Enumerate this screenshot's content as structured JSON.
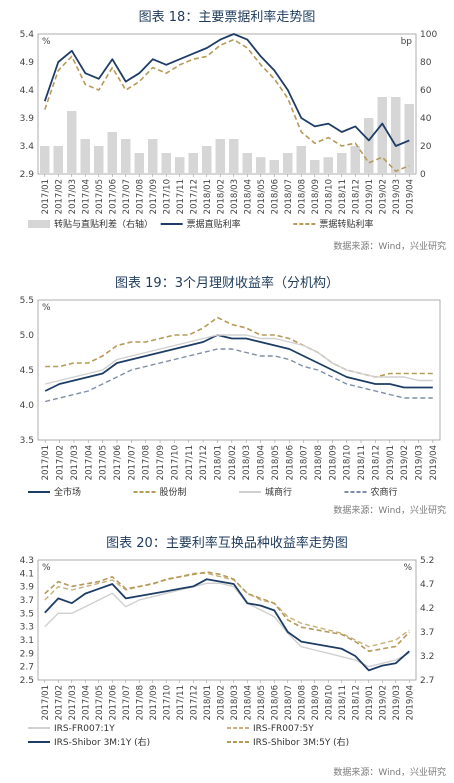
{
  "colors": {
    "navy": "#1e3d66",
    "gold": "#b59a58",
    "gold2": "#c7b07c",
    "light": "#d0d0d0",
    "slate": "#7f8fa6",
    "bar": "#d6d6d6"
  },
  "chart_data": [
    {
      "type": "line",
      "title": "图表 18：主要票据利率走势图",
      "y_unit_left": "%",
      "y_unit_right": "bp",
      "ylim": [
        2.9,
        5.4
      ],
      "y_ticks": [
        "5.4",
        "4.9",
        "4.4",
        "3.9",
        "3.4",
        "2.9"
      ],
      "y2lim": [
        0,
        100
      ],
      "y2_ticks": [
        "100",
        "80",
        "60",
        "40",
        "20",
        "0"
      ],
      "categories": [
        "2017/01",
        "2017/02",
        "2017/03",
        "2017/04",
        "2017/05",
        "2017/06",
        "2017/07",
        "2017/08",
        "2017/09",
        "2017/10",
        "2017/11",
        "2017/12",
        "2018/01",
        "2018/02",
        "2018/03",
        "2018/04",
        "2018/05",
        "2018/06",
        "2018/07",
        "2018/08",
        "2018/09",
        "2018/10",
        "2018/11",
        "2018/12",
        "2019/01",
        "2019/02",
        "2019/03",
        "2019/04"
      ],
      "series": [
        {
          "name": "转贴与直贴利差（右轴）",
          "kind": "bar",
          "axis": "right",
          "values": [
            20,
            20,
            45,
            25,
            20,
            30,
            25,
            15,
            25,
            15,
            12,
            15,
            20,
            25,
            25,
            15,
            12,
            10,
            15,
            20,
            10,
            12,
            15,
            20,
            40,
            55,
            55,
            50
          ]
        },
        {
          "name": "票据直贴利率",
          "kind": "line",
          "style": "solid",
          "values": [
            4.2,
            4.9,
            5.1,
            4.7,
            4.6,
            4.95,
            4.55,
            4.7,
            4.95,
            4.85,
            4.95,
            5.05,
            5.15,
            5.3,
            5.4,
            5.3,
            5.0,
            4.75,
            4.4,
            3.9,
            3.75,
            3.8,
            3.65,
            3.75,
            3.5,
            3.8,
            3.4,
            3.5
          ]
        },
        {
          "name": "票据转贴利率",
          "kind": "line",
          "style": "dashed",
          "values": [
            4.05,
            4.75,
            5.0,
            4.5,
            4.4,
            4.8,
            4.4,
            4.55,
            4.8,
            4.7,
            4.85,
            4.95,
            5.0,
            5.2,
            5.3,
            5.15,
            4.85,
            4.6,
            4.25,
            3.65,
            3.45,
            3.55,
            3.4,
            3.45,
            3.1,
            3.2,
            2.95,
            3.05
          ]
        }
      ],
      "source": "数据来源：Wind，兴业研究"
    },
    {
      "type": "line",
      "title": "图表 19：3个月理财收益率（分机构）",
      "y_unit_left": "%",
      "ylim": [
        3.5,
        5.5
      ],
      "y_ticks": [
        "5.5",
        "5.0",
        "4.5",
        "4.0",
        "3.5"
      ],
      "categories": [
        "2017/01",
        "2017/02",
        "2017/03",
        "2017/04",
        "2017/05",
        "2017/06",
        "2017/07",
        "2017/08",
        "2017/09",
        "2017/10",
        "2017/11",
        "2017/12",
        "2018/01",
        "2018/02",
        "2018/03",
        "2018/04",
        "2018/05",
        "2018/06",
        "2018/07",
        "2018/08",
        "2018/09",
        "2018/10",
        "2018/11",
        "2018/12",
        "2019/01",
        "2019/02",
        "2019/03",
        "2019/04"
      ],
      "series": [
        {
          "name": "全市场",
          "style": "solid",
          "values": [
            4.2,
            4.3,
            4.35,
            4.4,
            4.45,
            4.6,
            4.65,
            4.7,
            4.75,
            4.8,
            4.85,
            4.9,
            5.0,
            4.95,
            4.95,
            4.9,
            4.85,
            4.8,
            4.7,
            4.6,
            4.5,
            4.4,
            4.35,
            4.3,
            4.3,
            4.25,
            4.25,
            4.25
          ]
        },
        {
          "name": "股份制",
          "style": "dashed",
          "values": [
            4.55,
            4.55,
            4.6,
            4.6,
            4.7,
            4.85,
            4.9,
            4.9,
            4.95,
            5.0,
            5.0,
            5.1,
            5.25,
            5.15,
            5.1,
            5.0,
            5.0,
            4.95,
            4.85,
            4.75,
            4.6,
            4.5,
            4.45,
            4.4,
            4.45,
            4.45,
            4.45,
            4.45
          ]
        },
        {
          "name": "城商行",
          "style": "solid-light",
          "values": [
            4.3,
            4.35,
            4.4,
            4.45,
            4.5,
            4.65,
            4.7,
            4.75,
            4.8,
            4.85,
            4.9,
            4.95,
            5.0,
            5.0,
            5.0,
            4.95,
            4.95,
            4.9,
            4.85,
            4.75,
            4.6,
            4.5,
            4.45,
            4.4,
            4.4,
            4.4,
            4.35,
            4.35
          ]
        },
        {
          "name": "农商行",
          "style": "dashed-slate",
          "values": [
            4.05,
            4.1,
            4.15,
            4.2,
            4.3,
            4.4,
            4.5,
            4.55,
            4.6,
            4.65,
            4.7,
            4.75,
            4.8,
            4.8,
            4.75,
            4.7,
            4.7,
            4.65,
            4.55,
            4.5,
            4.4,
            4.3,
            4.25,
            4.2,
            4.15,
            4.1,
            4.1,
            4.1
          ]
        }
      ],
      "source": "数据来源：Wind，兴业研究"
    },
    {
      "type": "line",
      "title": "图表 20：主要利率互换品种收益率走势图",
      "y_unit_left": "%",
      "y_unit_right": "%",
      "ylim": [
        2.5,
        4.3
      ],
      "y_ticks": [
        "4.3",
        "4.1",
        "3.9",
        "3.7",
        "3.5",
        "3.3",
        "3.1",
        "2.9",
        "2.7",
        "2.5"
      ],
      "y2lim": [
        2.7,
        5.2
      ],
      "y2_ticks": [
        "5.2",
        "4.7",
        "4.2",
        "3.7",
        "3.2",
        "2.7"
      ],
      "categories": [
        "2017/01",
        "2017/02",
        "2017/03",
        "2017/04",
        "2017/05",
        "2017/06",
        "2017/07",
        "2017/08",
        "2017/09",
        "2017/10",
        "2017/11",
        "2017/12",
        "2018/01",
        "2018/02",
        "2018/03",
        "2018/04",
        "2018/05",
        "2018/06",
        "2018/07",
        "2018/08",
        "2018/09",
        "2018/10",
        "2018/11",
        "2018/12",
        "2019/01",
        "2019/02",
        "2019/03",
        "2019/04"
      ],
      "series": [
        {
          "name": "IRS-FR007:1Y",
          "style": "solid-light",
          "axis": "left",
          "values": [
            3.3,
            3.5,
            3.5,
            3.6,
            3.7,
            3.8,
            3.6,
            3.7,
            3.75,
            3.8,
            3.85,
            3.9,
            3.95,
            3.95,
            3.9,
            3.65,
            3.55,
            3.45,
            3.2,
            3.0,
            2.95,
            2.9,
            2.85,
            2.8,
            2.7,
            2.75,
            2.8,
            2.9
          ]
        },
        {
          "name": "IRS-FR007:5Y",
          "style": "dashed-light",
          "axis": "left",
          "values": [
            3.7,
            3.9,
            3.85,
            3.9,
            3.95,
            4.0,
            3.85,
            3.9,
            3.95,
            4.0,
            4.05,
            4.1,
            4.1,
            4.05,
            4.0,
            3.8,
            3.7,
            3.65,
            3.45,
            3.35,
            3.3,
            3.25,
            3.2,
            3.1,
            3.0,
            3.05,
            3.1,
            3.25
          ]
        },
        {
          "name": "IRS-Shibor 3M:1Y (右)",
          "style": "solid",
          "axis": "right",
          "values": [
            4.1,
            4.4,
            4.3,
            4.5,
            4.6,
            4.7,
            4.4,
            4.45,
            4.5,
            4.55,
            4.6,
            4.65,
            4.8,
            4.75,
            4.7,
            4.3,
            4.25,
            4.15,
            3.7,
            3.5,
            3.45,
            3.4,
            3.35,
            3.2,
            2.9,
            3.0,
            3.05,
            3.3
          ]
        },
        {
          "name": "IRS-Shibor 3M:5Y (右)",
          "style": "dashed",
          "axis": "right",
          "values": [
            4.5,
            4.75,
            4.65,
            4.7,
            4.75,
            4.85,
            4.6,
            4.65,
            4.7,
            4.8,
            4.85,
            4.9,
            4.95,
            4.9,
            4.8,
            4.5,
            4.4,
            4.3,
            3.95,
            3.8,
            3.75,
            3.7,
            3.65,
            3.5,
            3.3,
            3.35,
            3.4,
            3.7
          ]
        }
      ],
      "source": "数据来源：Wind，兴业研究"
    }
  ]
}
